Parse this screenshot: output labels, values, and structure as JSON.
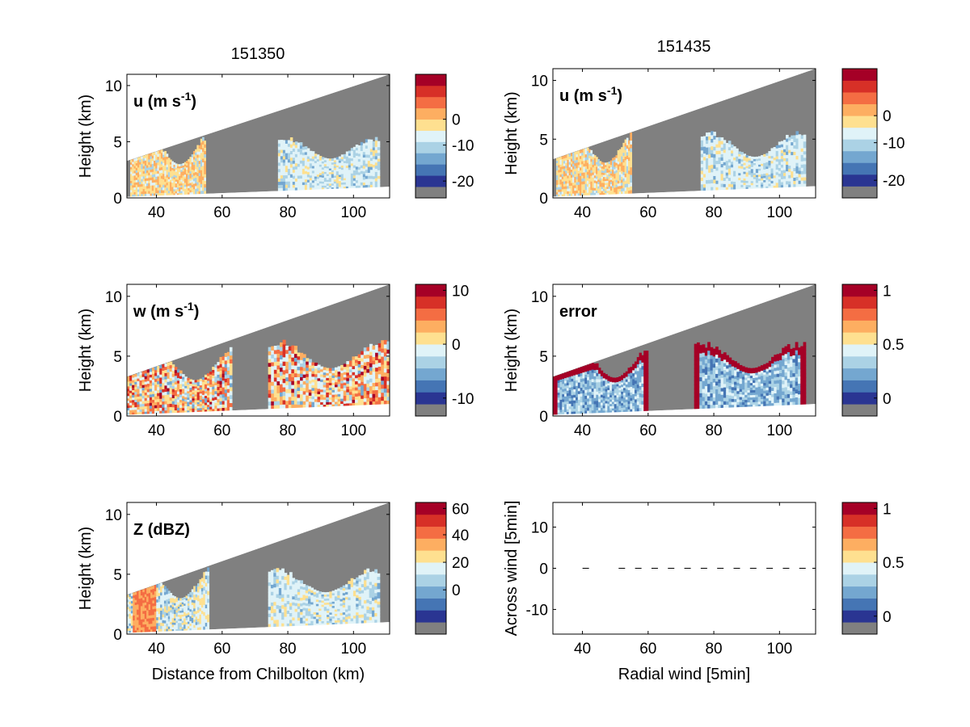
{
  "figure": {
    "column_titles": [
      "151350",
      "151435"
    ],
    "colormap": [
      "#808080",
      "#2a3592",
      "#4575b4",
      "#74a7d0",
      "#abd2e5",
      "#e0f3f8",
      "#fee090",
      "#fdae61",
      "#f46d43",
      "#d73027",
      "#a50026"
    ],
    "no_data_color": "#808080"
  },
  "chart_data": [
    {
      "type": "heatmap",
      "id": "u-151350",
      "title": "151350",
      "panel_label": "u (m s",
      "panel_label_sup": "-1",
      "panel_label_tail": ")",
      "xlabel": "",
      "ylabel": "Height (km)",
      "xlim": [
        31,
        111
      ],
      "ylim": [
        0,
        11
      ],
      "xticks": [
        40,
        60,
        80,
        100
      ],
      "yticks": [
        0,
        5,
        10
      ],
      "scan_top_km": [
        3.3,
        11.0
      ],
      "scan_bottom_km": [
        0.1,
        1.0
      ],
      "echo_regions": [
        {
          "x_range": [
            32,
            55
          ],
          "top_km": [
            3.0,
            5.6
          ],
          "value_band": "warm"
        },
        {
          "x_range": [
            77,
            108
          ],
          "top_km": [
            3.5,
            5.3
          ],
          "value_band": "cool"
        }
      ],
      "colorbar": {
        "ticks": [
          0,
          -10,
          -20
        ],
        "tick_bins": [
          7,
          4.7,
          1.5
        ],
        "bins": 11
      }
    },
    {
      "type": "heatmap",
      "id": "u-151435",
      "title": "151435",
      "panel_label": "u (m s",
      "panel_label_sup": "-1",
      "panel_label_tail": ")",
      "xlabel": "",
      "ylabel": "Height (km)",
      "xlim": [
        31,
        111
      ],
      "ylim": [
        0,
        11
      ],
      "xticks": [
        40,
        60,
        80,
        100
      ],
      "yticks": [
        0,
        5,
        10
      ],
      "scan_top_km": [
        3.3,
        11.0
      ],
      "scan_bottom_km": [
        0.1,
        1.0
      ],
      "echo_regions": [
        {
          "x_range": [
            32,
            55
          ],
          "top_km": [
            3.0,
            5.6
          ],
          "value_band": "warm"
        },
        {
          "x_range": [
            76,
            108
          ],
          "top_km": [
            3.5,
            5.5
          ],
          "value_band": "cool"
        }
      ],
      "colorbar": {
        "ticks": [
          0,
          -10,
          -20
        ],
        "tick_bins": [
          7,
          4.7,
          1.5
        ],
        "bins": 11
      }
    },
    {
      "type": "heatmap",
      "id": "w",
      "title": "",
      "panel_label": "w (m s",
      "panel_label_sup": "-1",
      "panel_label_tail": ")",
      "xlabel": "",
      "ylabel": "Height (km)",
      "xlim": [
        31,
        111
      ],
      "ylim": [
        0,
        11
      ],
      "xticks": [
        40,
        60,
        80,
        100
      ],
      "yticks": [
        0,
        5,
        10
      ],
      "scan_top_km": [
        3.3,
        11.0
      ],
      "scan_bottom_km": [
        0.1,
        1.0
      ],
      "echo_regions": [
        {
          "x_range": [
            31,
            63
          ],
          "top_km": [
            3.0,
            6.0
          ],
          "value_band": "mixed"
        },
        {
          "x_range": [
            74,
            111
          ],
          "top_km": [
            4.0,
            6.2
          ],
          "value_band": "mixed"
        }
      ],
      "colorbar": {
        "ticks": [
          10,
          0,
          -10
        ],
        "tick_bins": [
          10.5,
          6,
          1.5
        ],
        "bins": 11
      }
    },
    {
      "type": "heatmap",
      "id": "error",
      "title": "",
      "panel_label": "error",
      "panel_label_sup": "",
      "panel_label_tail": "",
      "xlabel": "",
      "ylabel": "Height (km)",
      "xlim": [
        31,
        111
      ],
      "ylim": [
        0,
        11
      ],
      "xticks": [
        40,
        60,
        80,
        100
      ],
      "yticks": [
        0,
        5,
        10
      ],
      "scan_top_km": [
        3.3,
        11.0
      ],
      "scan_bottom_km": [
        0.1,
        1.0
      ],
      "echo_regions": [
        {
          "x_range": [
            31,
            60
          ],
          "top_km": [
            3.2,
            5.9
          ],
          "value_band": "cool-edged"
        },
        {
          "x_range": [
            74,
            108
          ],
          "top_km": [
            4.0,
            6.0
          ],
          "value_band": "cool-edged"
        }
      ],
      "colorbar": {
        "ticks": [
          1,
          0.5,
          0
        ],
        "tick_bins": [
          10.5,
          6,
          1.5
        ],
        "bins": 11
      }
    },
    {
      "type": "heatmap",
      "id": "z",
      "title": "",
      "panel_label": "Z (dBZ)",
      "panel_label_sup": "",
      "panel_label_tail": "",
      "xlabel": "Distance from Chilbolton (km)",
      "ylabel": "Height (km)",
      "xlim": [
        31,
        111
      ],
      "ylim": [
        0,
        11
      ],
      "xticks": [
        40,
        60,
        80,
        100
      ],
      "yticks": [
        0,
        5,
        10
      ],
      "scan_top_km": [
        3.3,
        11.0
      ],
      "scan_bottom_km": [
        0.1,
        1.0
      ],
      "echo_regions": [
        {
          "x_range": [
            31,
            56
          ],
          "top_km": [
            3.0,
            5.5
          ],
          "value_band": "warm-core"
        },
        {
          "x_range": [
            74,
            108
          ],
          "top_km": [
            3.5,
            5.3
          ],
          "value_band": "cool"
        }
      ],
      "colorbar": {
        "ticks": [
          60,
          40,
          20,
          0
        ],
        "tick_bins": [
          10.5,
          8.3,
          6,
          3.7
        ],
        "bins": 11
      }
    },
    {
      "type": "scatter",
      "id": "quiver",
      "title": "",
      "panel_label": "",
      "xlabel": "Radial wind [5min]",
      "ylabel": "Across wind [5min]",
      "xlim": [
        31,
        111
      ],
      "ylim": [
        -16,
        16
      ],
      "xticks": [
        40,
        60,
        80,
        100
      ],
      "yticks": [
        -10,
        0,
        10
      ],
      "x": [
        41,
        52,
        57,
        62,
        67,
        72,
        77,
        82,
        87,
        92,
        97,
        102,
        107
      ],
      "y": [
        0,
        0,
        0,
        0,
        0,
        0,
        0,
        0,
        0,
        0,
        0,
        0,
        0
      ],
      "colorbar": {
        "ticks": [
          1,
          0.5,
          0
        ],
        "tick_bins": [
          10.5,
          6,
          1.5
        ],
        "bins": 11
      }
    }
  ]
}
